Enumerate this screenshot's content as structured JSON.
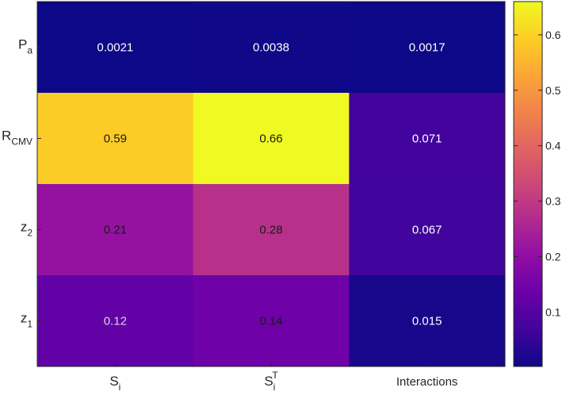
{
  "chart_data": {
    "type": "heatmap",
    "title": "",
    "xlabel": "",
    "ylabel": "",
    "colormap": "plasma",
    "color_range": [
      0.0017,
      0.66
    ],
    "columns": [
      {
        "name": "Si",
        "base": "S",
        "sub": "i",
        "sup": ""
      },
      {
        "name": "SiT",
        "base": "S",
        "sub": "i",
        "sup": "T"
      },
      {
        "name": "Interactions",
        "base": "Interactions",
        "sub": "",
        "sup": ""
      }
    ],
    "rows": [
      {
        "name": "Pa",
        "base": "P",
        "sub": "a",
        "values": [
          0.0021,
          0.0038,
          0.0017
        ],
        "labels": [
          "0.0021",
          "0.0038",
          "0.0017"
        ]
      },
      {
        "name": "RCMV",
        "base": "R",
        "sub": "CMV",
        "values": [
          0.59,
          0.66,
          0.071
        ],
        "labels": [
          "0.59",
          "0.66",
          "0.071"
        ]
      },
      {
        "name": "z2",
        "base": "z",
        "sub": "2",
        "values": [
          0.21,
          0.28,
          0.067
        ],
        "labels": [
          "0.21",
          "0.28",
          "0.067"
        ]
      },
      {
        "name": "z1",
        "base": "z",
        "sub": "1",
        "values": [
          0.12,
          0.14,
          0.015
        ],
        "labels": [
          "0.12",
          "0.14",
          "0.015"
        ]
      }
    ],
    "colorbar": {
      "ticks": [
        0.1,
        0.2,
        0.3,
        0.4,
        0.5,
        0.6
      ],
      "tick_labels": [
        "0.1",
        "0.2",
        "0.3",
        "0.4",
        "0.5",
        "0.6"
      ]
    }
  }
}
